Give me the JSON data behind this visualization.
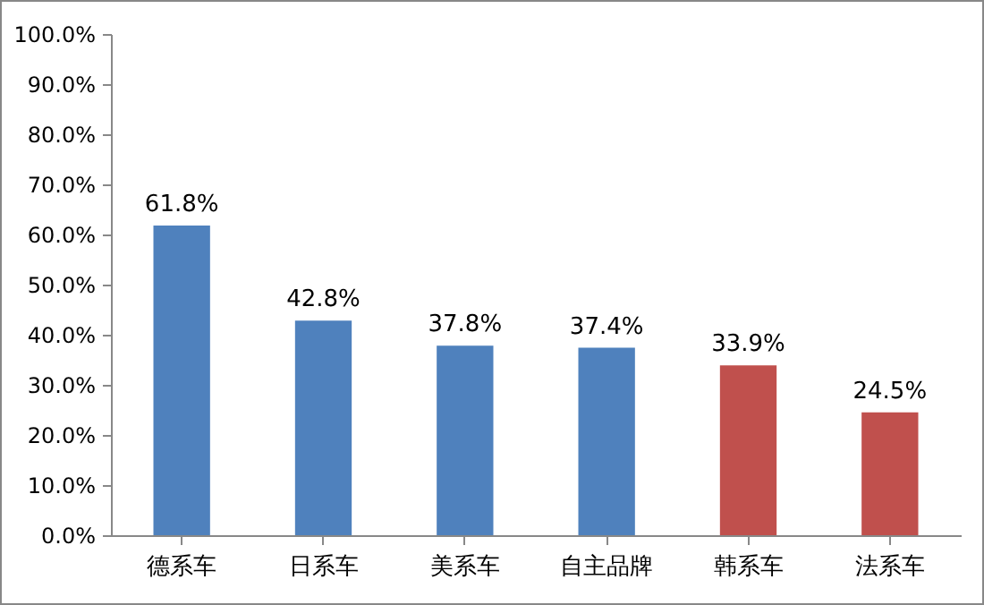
{
  "chart_data": {
    "type": "bar",
    "categories": [
      "德系车",
      "日系车",
      "美系车",
      "自主品牌",
      "韩系车",
      "法系车"
    ],
    "values": [
      61.8,
      42.8,
      37.8,
      37.4,
      33.9,
      24.5
    ],
    "colors": [
      "#4f81bd",
      "#4f81bd",
      "#4f81bd",
      "#4f81bd",
      "#c0504d",
      "#c0504d"
    ],
    "value_labels": [
      "61.8%",
      "42.8%",
      "37.8%",
      "37.4%",
      "33.9%",
      "24.5%"
    ],
    "ylim": [
      0,
      100
    ],
    "yticks": [
      {
        "value": 0,
        "label": "0.0%"
      },
      {
        "value": 10,
        "label": "10.0%"
      },
      {
        "value": 20,
        "label": "20.0%"
      },
      {
        "value": 30,
        "label": "30.0%"
      },
      {
        "value": 40,
        "label": "40.0%"
      },
      {
        "value": 50,
        "label": "50.0%"
      },
      {
        "value": 60,
        "label": "60.0%"
      },
      {
        "value": 70,
        "label": "70.0%"
      },
      {
        "value": 80,
        "label": "80.0%"
      },
      {
        "value": 90,
        "label": "90.0%"
      },
      {
        "value": 100,
        "label": "100.0%"
      }
    ],
    "grid": false
  }
}
